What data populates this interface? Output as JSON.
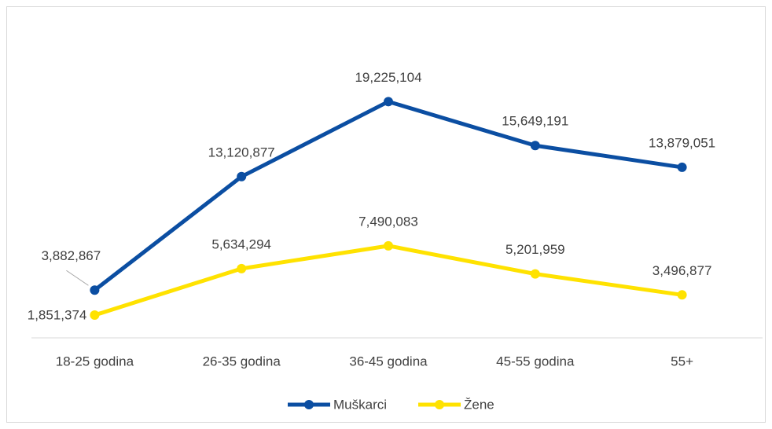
{
  "chart_data": {
    "type": "line",
    "categories": [
      "18-25 godina",
      "26-35 godina",
      "36-45 godina",
      "45-55 godina",
      "55+"
    ],
    "series": [
      {
        "name": "Muškarci",
        "color": "#0b4ea2",
        "values": [
          3882867,
          13120877,
          19225104,
          15649191,
          13879051
        ],
        "value_labels": [
          "3,882,867",
          "13,120,877",
          "19,225,104",
          "15,649,191",
          "13,879,051"
        ]
      },
      {
        "name": "Žene",
        "color": "#ffe200",
        "values": [
          1851374,
          5634294,
          7490083,
          5201959,
          3496877
        ],
        "value_labels": [
          "1,851,374",
          "5,634,294",
          "7,490,083",
          "5,201,959",
          "3,496,877"
        ]
      }
    ],
    "ylim": [
      0,
      25000000
    ],
    "legend": "bottom"
  }
}
